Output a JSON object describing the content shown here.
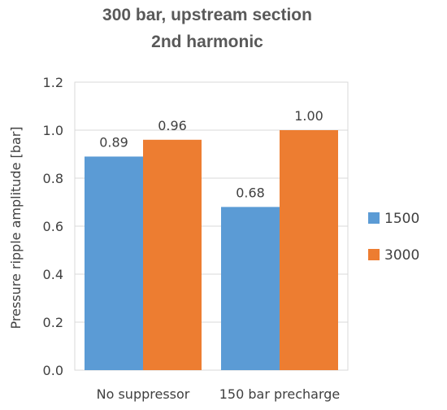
{
  "chart_data": {
    "type": "bar",
    "title": [
      "300 bar, upstream section",
      "2nd harmonic"
    ],
    "xlabel": "",
    "ylabel": "Pressure ripple amplitude [bar]",
    "categories": [
      "No suppressor",
      "150 bar precharge"
    ],
    "ylim": [
      0,
      1.2
    ],
    "yticks": [
      "0.0",
      "0.2",
      "0.4",
      "0.6",
      "0.8",
      "1.0",
      "1.2"
    ],
    "grid": true,
    "legend_position": "right",
    "series": [
      {
        "name": "1500",
        "color": "#5b9bd5",
        "values": [
          0.89,
          0.68
        ],
        "labels": [
          "0.89",
          "0.68"
        ]
      },
      {
        "name": "3000",
        "color": "#ed7d31",
        "values": [
          0.96,
          1.0
        ],
        "labels": [
          "0.96",
          "1.00"
        ]
      }
    ]
  }
}
